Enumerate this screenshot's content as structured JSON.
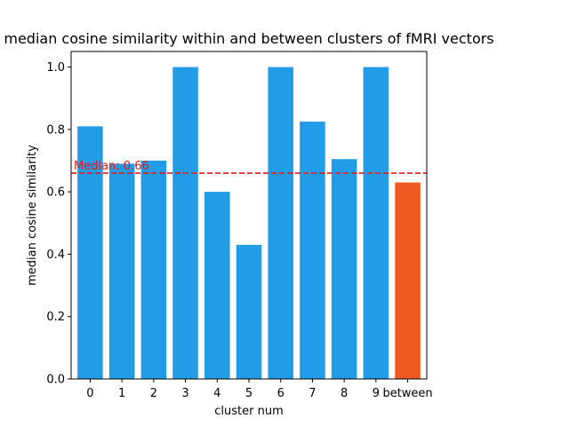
{
  "chart_data": {
    "type": "bar",
    "title": "median cosine similarity within and between clusters of fMRI vectors",
    "xlabel": "cluster num",
    "ylabel": "median cosine similarity",
    "ylim": [
      0,
      1.05
    ],
    "yticks": [
      "0.0",
      "0.2",
      "0.4",
      "0.6",
      "0.8",
      "1.0"
    ],
    "ytick_values": [
      0,
      0.2,
      0.4,
      0.6,
      0.8,
      1.0
    ],
    "categories": [
      "0",
      "1",
      "2",
      "3",
      "4",
      "5",
      "6",
      "7",
      "8",
      "9",
      "between"
    ],
    "values": [
      0.81,
      0.69,
      0.7,
      1.0,
      0.6,
      0.43,
      1.0,
      0.825,
      0.705,
      1.0,
      0.63
    ],
    "bar_colors": [
      "#239ce8",
      "#239ce8",
      "#239ce8",
      "#239ce8",
      "#239ce8",
      "#239ce8",
      "#239ce8",
      "#239ce8",
      "#239ce8",
      "#239ce8",
      "#ef5a22"
    ],
    "reference_line": {
      "value": 0.66,
      "label": "Median: 0.66",
      "color": "#e31a1c",
      "style": "dashed"
    },
    "grid": false,
    "legend": "none"
  }
}
